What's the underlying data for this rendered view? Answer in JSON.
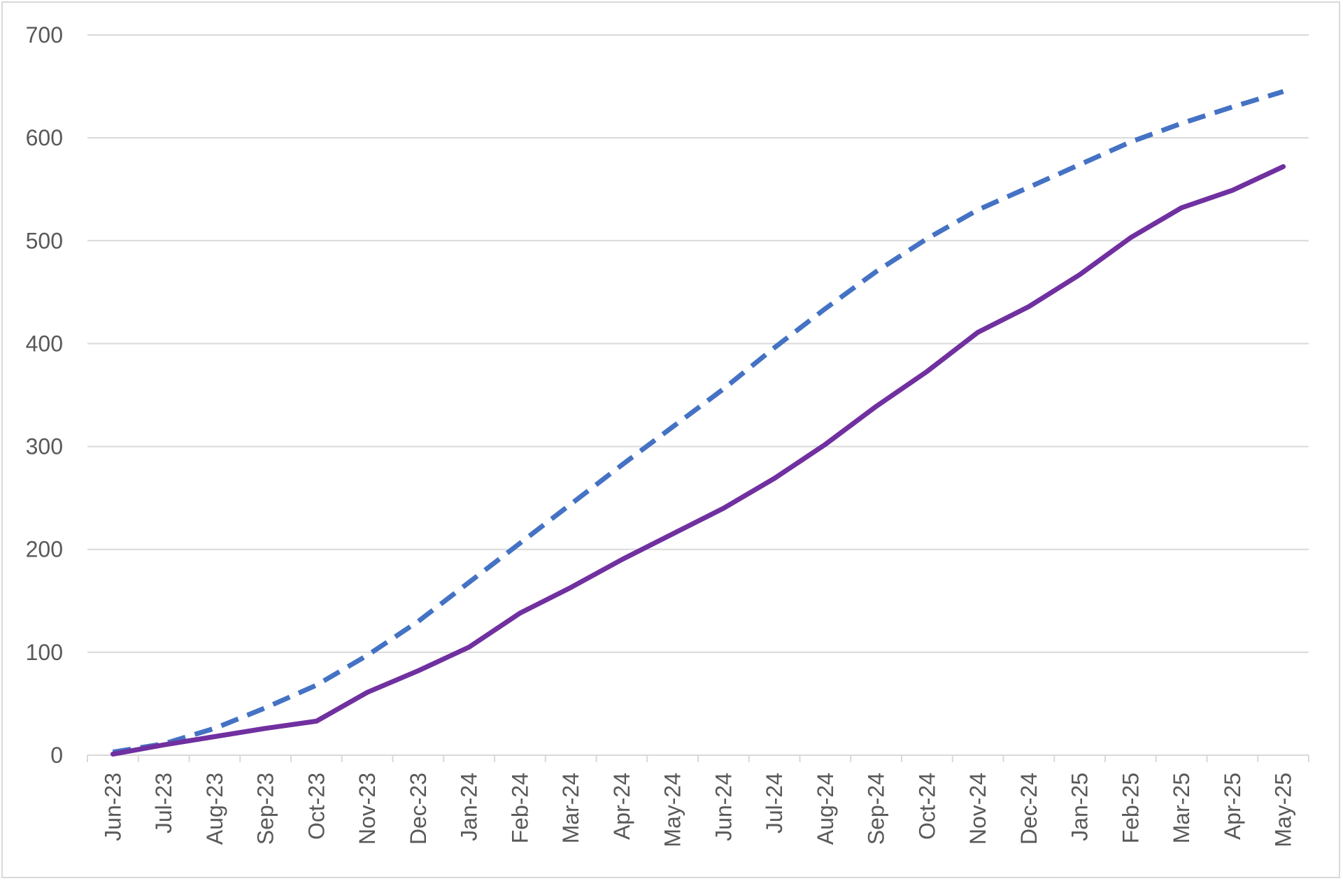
{
  "chart_data": {
    "type": "line",
    "categories": [
      "Jun-23",
      "Jul-23",
      "Aug-23",
      "Sep-23",
      "Oct-23",
      "Nov-23",
      "Dec-23",
      "Jan-24",
      "Feb-24",
      "Mar-24",
      "Apr-24",
      "May-24",
      "Jun-24",
      "Jul-24",
      "Aug-24",
      "Sep-24",
      "Oct-24",
      "Nov-24",
      "Dec-24",
      "Jan-25",
      "Feb-25",
      "Mar-25",
      "Apr-25",
      "May-25"
    ],
    "series": [
      {
        "style": "dashed",
        "color": "#4472C4",
        "values": [
          3,
          11,
          26,
          46,
          68,
          97,
          130,
          168,
          206,
          244,
          282,
          319,
          356,
          396,
          434,
          470,
          502,
          530,
          552,
          574,
          596,
          614,
          630,
          645
        ]
      },
      {
        "style": "solid",
        "color": "#7030A0",
        "values": [
          1,
          10,
          18,
          26,
          33,
          61,
          82,
          105,
          138,
          163,
          190,
          215,
          240,
          269,
          302,
          339,
          373,
          411,
          436,
          467,
          503,
          532,
          549,
          572
        ]
      }
    ],
    "ylim": [
      0,
      700
    ],
    "yticks": [
      0,
      100,
      200,
      300,
      400,
      500,
      600,
      700
    ],
    "grid": true,
    "legend": "none",
    "title": "",
    "xlabel": "",
    "ylabel": ""
  }
}
